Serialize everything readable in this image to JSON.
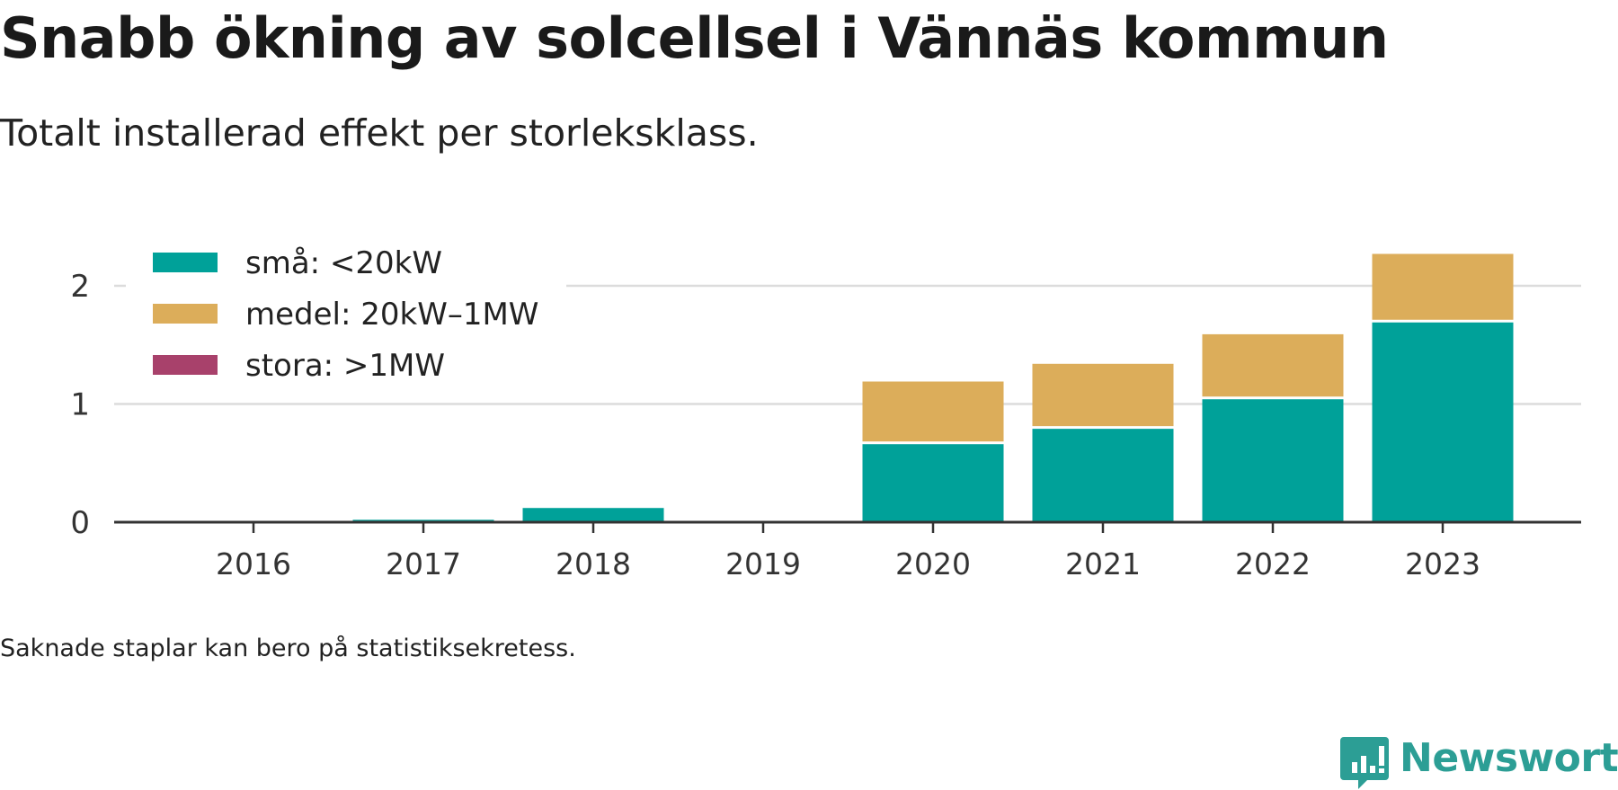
{
  "title": "Snabb ökning av solcellsel i Vännäs kommun",
  "subtitle": "Totalt installerad effekt per storleksklass.",
  "footnote": "Saknade staplar kan bero på statistiksekretess.",
  "brand": {
    "name": "Newsworthy",
    "icon": "newsworthy-logo-icon",
    "color": "#2c9e95"
  },
  "chart_data": {
    "type": "bar",
    "stacked": true,
    "categories": [
      "2016",
      "2017",
      "2018",
      "2019",
      "2020",
      "2021",
      "2022",
      "2023"
    ],
    "series": [
      {
        "name": "små: <20kW",
        "color": "#00a199",
        "values": [
          0.0,
          0.02,
          0.12,
          0.0,
          0.66,
          0.79,
          1.04,
          1.69
        ]
      },
      {
        "name": "medel: 20kW–1MW",
        "color": "#dcad5a",
        "values": [
          0.0,
          0.0,
          0.0,
          0.0,
          0.53,
          0.55,
          0.55,
          0.58
        ]
      },
      {
        "name": "stora: >1MW",
        "color": "#a8416b",
        "values": [
          0.0,
          0.0,
          0.0,
          0.0,
          0.0,
          0.0,
          0.0,
          0.0
        ]
      }
    ],
    "yticks": [
      0,
      1,
      2
    ],
    "ylim": [
      0,
      2.3
    ],
    "grid": true,
    "legend": "top-left",
    "xlabel": "",
    "ylabel": ""
  }
}
